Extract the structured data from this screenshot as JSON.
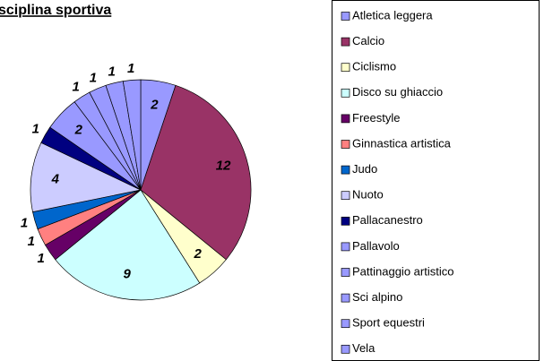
{
  "chart_data": {
    "type": "pie",
    "title": "sciplina sportiva",
    "categories": [
      "Atletica leggera",
      "Calcio",
      "Ciclismo",
      "Disco su ghiaccio",
      "Freestyle",
      "Ginnastica artistica",
      "Judo",
      "Nuoto",
      "Pallacanestro",
      "Pallavolo",
      "Pattinaggio artistico",
      "Sci alpino",
      "Sport equestri",
      "Vela"
    ],
    "values": [
      2,
      12,
      2,
      9,
      1,
      1,
      1,
      4,
      1,
      2,
      1,
      1,
      1,
      1
    ],
    "colors": [
      "#9999ff",
      "#993366",
      "#ffffcc",
      "#ccffff",
      "#660066",
      "#ff8080",
      "#0066cc",
      "#ccccff",
      "#000080",
      "#9999ff",
      "#9999ff",
      "#9999ff",
      "#9999ff",
      "#9999ff"
    ],
    "legend": "right"
  }
}
